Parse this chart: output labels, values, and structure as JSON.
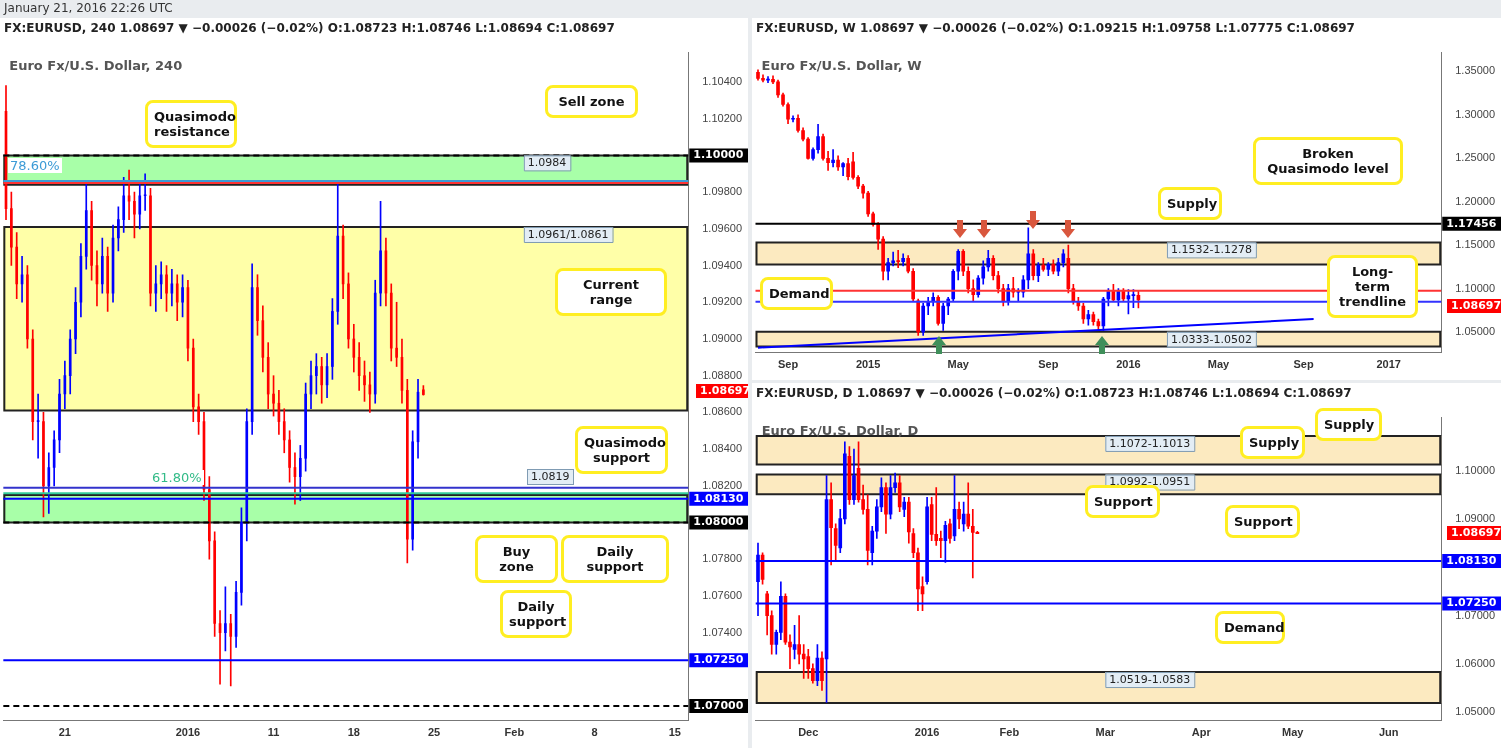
{
  "chart_data": [
    {
      "type": "candlestick",
      "title": "FX:EURUSD, 240  1.08697 ▼ −0.00026 (−0.02%)  O:1.08723 H:1.08746 L:1.08694 C:1.08697",
      "subtitle": "Euro Fx/U.S. Dollar, 240",
      "categories": [
        null,
        null,
        null,
        null,
        null,
        null,
        null,
        null,
        null,
        null,
        null,
        "21",
        null,
        null,
        null,
        null,
        null,
        null,
        null,
        null,
        null,
        null,
        null,
        null,
        null,
        null,
        null,
        null,
        null,
        null,
        null,
        null,
        null,
        null,
        "2016",
        null,
        null,
        null,
        null,
        null,
        null,
        null,
        null,
        null,
        null,
        null,
        null,
        null,
        null,
        null,
        "11",
        null,
        null,
        null,
        null,
        null,
        null,
        null,
        null,
        null,
        null,
        null,
        null,
        null,
        null,
        "18",
        null,
        null,
        null,
        null,
        null,
        null,
        null,
        null,
        null,
        null,
        null,
        null,
        null,
        null,
        "25",
        null,
        null,
        null,
        null,
        null,
        null,
        null,
        null,
        null,
        null,
        null,
        null,
        null,
        null,
        "Feb",
        null,
        null,
        null,
        null,
        null,
        null,
        null,
        null,
        null,
        null,
        null,
        null,
        null,
        null,
        "8",
        null,
        null,
        null,
        null,
        null,
        null,
        null,
        null,
        null,
        null,
        null,
        null,
        null,
        null,
        "15",
        null,
        null
      ],
      "ohlc": [
        [
          1.1024,
          1.1038,
          1.0965,
          1.0971
        ],
        [
          1.0971,
          1.098,
          1.094,
          1.095
        ],
        [
          1.095,
          1.0958,
          1.0922,
          1.093
        ],
        [
          1.093,
          1.0945,
          1.092,
          1.0935
        ],
        [
          1.0935,
          1.094,
          1.0895,
          1.09
        ],
        [
          1.09,
          1.0905,
          1.0845,
          1.0855
        ],
        [
          1.0855,
          1.087,
          1.0835,
          1.0855
        ],
        [
          1.0855,
          1.086,
          1.0803,
          1.082
        ],
        [
          1.082,
          1.0838,
          1.0805,
          1.083
        ],
        [
          1.083,
          1.085,
          1.082,
          1.0845
        ],
        [
          1.0845,
          1.0878,
          1.0838,
          1.087
        ],
        [
          1.087,
          1.0888,
          1.0862,
          1.088
        ],
        [
          1.088,
          1.0905,
          1.087,
          1.09
        ],
        [
          1.09,
          1.0928,
          1.0892,
          1.092
        ],
        [
          1.092,
          1.0952,
          1.0912,
          1.0945
        ],
        [
          1.0945,
          1.0985,
          1.0938,
          1.097
        ],
        [
          1.097,
          1.0975,
          1.0932,
          1.094
        ],
        [
          1.094,
          1.0948,
          1.0918,
          1.093
        ],
        [
          1.093,
          1.0955,
          1.0925,
          1.0945
        ],
        [
          1.0945,
          1.095,
          1.0915,
          1.0925
        ],
        [
          1.0925,
          1.0962,
          1.092,
          1.0955
        ],
        [
          1.0955,
          1.0972,
          1.0948,
          1.0965
        ],
        [
          1.0965,
          1.0988,
          1.0958,
          1.0978
        ],
        [
          1.0978,
          1.0992,
          1.0965,
          1.0975
        ],
        [
          1.0975,
          1.098,
          1.0955,
          1.0968
        ],
        [
          1.0968,
          1.0985,
          1.096,
          1.0978
        ],
        [
          1.0978,
          1.099,
          1.097,
          1.0978
        ],
        [
          1.0978,
          1.0982,
          1.0918,
          1.0925
        ],
        [
          1.0925,
          1.094,
          1.0915,
          1.093
        ],
        [
          1.093,
          1.0942,
          1.0922,
          1.0935
        ],
        [
          1.0935,
          1.094,
          1.0915,
          1.0925
        ],
        [
          1.0925,
          1.0938,
          1.0918,
          1.093
        ],
        [
          1.093,
          1.0935,
          1.091,
          1.092
        ],
        [
          1.092,
          1.0935,
          1.0912,
          1.0928
        ],
        [
          1.0928,
          1.0932,
          1.0888,
          1.0895
        ],
        [
          1.0895,
          1.09,
          1.0855,
          1.0863
        ],
        [
          1.0863,
          1.087,
          1.0848,
          1.0855
        ],
        [
          1.0855,
          1.086,
          1.0812,
          1.0818
        ],
        [
          1.0818,
          1.0825,
          1.078,
          1.079
        ],
        [
          1.079,
          1.0795,
          1.0738,
          1.0745
        ],
        [
          1.0745,
          1.0752,
          1.0712,
          1.074
        ],
        [
          1.074,
          1.0765,
          1.073,
          1.0745
        ],
        [
          1.0745,
          1.075,
          1.0711,
          1.0738
        ],
        [
          1.0738,
          1.0768,
          1.0732,
          1.0762
        ],
        [
          1.0762,
          1.0808,
          1.0755,
          1.08
        ],
        [
          1.08,
          1.0862,
          1.079,
          1.0855
        ],
        [
          1.0855,
          1.0941,
          1.0848,
          1.0928
        ],
        [
          1.0928,
          1.0935,
          1.0902,
          1.091
        ],
        [
          1.091,
          1.0918,
          1.0882,
          1.089
        ],
        [
          1.089,
          1.0898,
          1.0862,
          1.087
        ],
        [
          1.087,
          1.088,
          1.0858,
          1.0865
        ],
        [
          1.0865,
          1.0872,
          1.0848,
          1.0855
        ],
        [
          1.0855,
          1.0862,
          1.0838,
          1.0845
        ],
        [
          1.0845,
          1.085,
          1.0822,
          1.083
        ],
        [
          1.083,
          1.0838,
          1.081,
          1.0825
        ],
        [
          1.0825,
          1.0842,
          1.0812,
          1.0835
        ],
        [
          1.0835,
          1.0876,
          1.0828,
          1.087
        ],
        [
          1.087,
          1.0888,
          1.0862,
          1.088
        ],
        [
          1.088,
          1.0892,
          1.087,
          1.0885
        ],
        [
          1.0885,
          1.089,
          1.0865,
          1.0875
        ],
        [
          1.0875,
          1.0892,
          1.0868,
          1.0885
        ],
        [
          1.0885,
          1.0922,
          1.0878,
          1.0915
        ],
        [
          1.0915,
          1.0985,
          1.0908,
          1.0956
        ],
        [
          1.0956,
          1.0962,
          1.0922,
          1.093
        ],
        [
          1.093,
          1.0936,
          1.0895,
          1.09
        ],
        [
          1.09,
          1.0908,
          1.0882,
          1.089
        ],
        [
          1.089,
          1.0898,
          1.0872,
          1.088
        ],
        [
          1.088,
          1.0888,
          1.0866,
          1.0875
        ],
        [
          1.0875,
          1.0882,
          1.086,
          1.087
        ],
        [
          1.087,
          1.0932,
          1.0865,
          1.0925
        ],
        [
          1.0925,
          1.0975,
          1.0918,
          1.0948
        ],
        [
          1.0948,
          1.0955,
          1.0918,
          1.0925
        ],
        [
          1.0925,
          1.093,
          1.0888,
          1.0895
        ],
        [
          1.0895,
          1.092,
          1.0885,
          1.089
        ],
        [
          1.089,
          1.09,
          1.0865,
          1.0872
        ],
        [
          1.0872,
          1.0878,
          1.0778,
          1.0791
        ],
        [
          1.0791,
          1.085,
          1.0785,
          1.0844
        ],
        [
          1.0844,
          1.0878,
          1.0835,
          1.0871
        ],
        [
          1.08723,
          1.08746,
          1.08694,
          1.08697
        ],
        null,
        null,
        null,
        null,
        null,
        null,
        null,
        null,
        null,
        null,
        null,
        null,
        null,
        null,
        null,
        null,
        null,
        null,
        null,
        null,
        null,
        null,
        null,
        null,
        null,
        null,
        null,
        null,
        null,
        null,
        null,
        null,
        null,
        null,
        null,
        null,
        null,
        null,
        null,
        null,
        null,
        null,
        null,
        null,
        null,
        null,
        null,
        null,
        null
      ],
      "ylim": [
        1.0692,
        1.1056
      ],
      "yticks": [
        {
          "value": 1.074,
          "label": "1.07400"
        },
        {
          "value": 1.076,
          "label": "1.07600"
        },
        {
          "value": 1.078,
          "label": "1.07800"
        },
        {
          "value": 1.082,
          "label": "1.08200"
        },
        {
          "value": 1.084,
          "label": "1.08400"
        },
        {
          "value": 1.086,
          "label": "1.08600"
        },
        {
          "value": 1.088,
          "label": "1.08800"
        },
        {
          "value": 1.09,
          "label": "1.09000"
        },
        {
          "value": 1.092,
          "label": "1.09200"
        },
        {
          "value": 1.094,
          "label": "1.09400"
        },
        {
          "value": 1.096,
          "label": "1.09600"
        },
        {
          "value": 1.098,
          "label": "1.09800"
        },
        {
          "value": 1.102,
          "label": "1.10200"
        },
        {
          "value": 1.104,
          "label": "1.10400"
        }
      ],
      "bands": [
        {
          "axis": "y",
          "from": 1.0984,
          "to": 1.1,
          "label": "1.0984",
          "color": "#99ff99"
        },
        {
          "axis": "y",
          "from": 1.0861,
          "to": 1.0961,
          "label": "1.0961/1.0861",
          "color": "#ffff99"
        },
        {
          "axis": "y",
          "from": 1.08,
          "to": 1.0815,
          "color": "#99ff99"
        }
      ],
      "ref_lines": [
        {
          "axis": "y",
          "value": 1.1,
          "label": "1.10000",
          "color": "#000000",
          "line_style": "dashed"
        },
        {
          "axis": "y",
          "value": 1.0986,
          "color": "#3c9bd6"
        },
        {
          "axis": "y",
          "value": 1.0985,
          "color": "#ff3333"
        },
        {
          "axis": "y",
          "value": 1.0819,
          "color": "#3333cc"
        },
        {
          "axis": "y",
          "value": 1.0816,
          "color": "#33cc99"
        },
        {
          "axis": "y",
          "value": 1.0813,
          "label": "1.08130",
          "color": "#0000ff"
        },
        {
          "axis": "y",
          "value": 1.08,
          "label": "1.08000",
          "color": "#000000",
          "line_style": "dashed"
        },
        {
          "axis": "y",
          "value": 1.0725,
          "label": "1.07250",
          "color": "#0000ff"
        },
        {
          "axis": "y",
          "value": 1.07,
          "label": "1.07000",
          "color": "#000000",
          "line_style": "dashed"
        }
      ],
      "annotations": [
        "January 21, 2016 22:26 UTC",
        "Quasimodo resistance",
        "Sell zone",
        "Current range",
        "Quasimodo support",
        "Buy zone",
        "Daily support",
        "Daily support",
        "78.60%",
        "61.80%",
        "1.0819",
        "1.08697"
      ]
    },
    {
      "type": "candlestick",
      "title": "FX:EURUSD, W  1.08697 ▼ −0.00026 (−0.02%)  O:1.09215 H:1.09758 L:1.07775 C:1.08697",
      "subtitle": "Euro Fx/U.S. Dollar, W",
      "categories": [
        null,
        null,
        null,
        null,
        null,
        null,
        "Sep",
        null,
        null,
        null,
        null,
        null,
        null,
        null,
        null,
        null,
        null,
        null,
        null,
        null,
        null,
        null,
        "2015",
        null,
        null,
        null,
        null,
        null,
        null,
        null,
        null,
        null,
        null,
        null,
        null,
        null,
        null,
        null,
        null,
        null,
        "May",
        null,
        null,
        null,
        null,
        null,
        null,
        null,
        null,
        null,
        null,
        null,
        null,
        null,
        null,
        null,
        null,
        null,
        "Sep",
        null,
        null,
        null,
        null,
        null,
        null,
        null,
        null,
        null,
        null,
        null,
        null,
        null,
        null,
        null,
        "2016",
        null,
        null,
        null,
        null,
        null,
        null,
        null,
        null,
        null,
        null,
        null,
        null,
        null,
        null,
        null,
        null,
        null,
        "May",
        null,
        null,
        null,
        null,
        null,
        null,
        null,
        null,
        null,
        null,
        null,
        null,
        null,
        null,
        null,
        null,
        "Sep",
        null,
        null,
        null,
        null,
        null,
        null,
        null,
        null,
        null,
        null,
        null,
        null,
        null,
        null,
        null,
        null,
        "2017",
        null,
        null,
        null,
        null,
        null,
        null,
        null,
        null,
        null,
        null
      ],
      "ohlc": [
        [
          1.349,
          1.352,
          1.34,
          1.342
        ],
        [
          1.342,
          1.346,
          1.338,
          1.34
        ],
        [
          1.34,
          1.344,
          1.337,
          1.341
        ],
        [
          1.341,
          1.345,
          1.336,
          1.338
        ],
        [
          1.338,
          1.34,
          1.32,
          1.323
        ],
        [
          1.323,
          1.325,
          1.31,
          1.312
        ],
        [
          1.312,
          1.314,
          1.29,
          1.295
        ],
        [
          1.295,
          1.299,
          1.292,
          1.296
        ],
        [
          1.296,
          1.3,
          1.28,
          1.282
        ],
        [
          1.282,
          1.285,
          1.27,
          1.272
        ],
        [
          1.272,
          1.274,
          1.249,
          1.25
        ],
        [
          1.25,
          1.262,
          1.248,
          1.26
        ],
        [
          1.26,
          1.289,
          1.256,
          1.275
        ],
        [
          1.275,
          1.278,
          1.248,
          1.25
        ],
        [
          1.25,
          1.258,
          1.236,
          1.245
        ],
        [
          1.245,
          1.26,
          1.24,
          1.248
        ],
        [
          1.248,
          1.253,
          1.236,
          1.24
        ],
        [
          1.24,
          1.245,
          1.23,
          1.244
        ],
        [
          1.244,
          1.25,
          1.225,
          1.229
        ],
        [
          1.246,
          1.257,
          1.226,
          1.228
        ],
        [
          1.228,
          1.23,
          1.215,
          1.218
        ],
        [
          1.218,
          1.22,
          1.204,
          1.21
        ],
        [
          1.21,
          1.212,
          1.183,
          1.186
        ],
        [
          1.186,
          1.188,
          1.172,
          1.174
        ],
        [
          1.174,
          1.176,
          1.145,
          1.157
        ],
        [
          1.157,
          1.16,
          1.11,
          1.12
        ],
        [
          1.12,
          1.135,
          1.11,
          1.13
        ],
        [
          1.13,
          1.142,
          1.126,
          1.132
        ],
        [
          1.132,
          1.144,
          1.124,
          1.131
        ],
        [
          1.131,
          1.14,
          1.126,
          1.135
        ],
        [
          1.135,
          1.138,
          1.118,
          1.12
        ],
        [
          1.12,
          1.123,
          1.085,
          1.088
        ],
        [
          1.086,
          1.088,
          1.046,
          1.05
        ],
        [
          1.05,
          1.083,
          1.046,
          1.08
        ],
        [
          1.08,
          1.09,
          1.07,
          1.085
        ],
        [
          1.085,
          1.095,
          1.08,
          1.09
        ],
        [
          1.09,
          1.092,
          1.058,
          1.06
        ],
        [
          1.06,
          1.083,
          1.052,
          1.08
        ],
        [
          1.08,
          1.09,
          1.07,
          1.088
        ],
        [
          1.088,
          1.122,
          1.085,
          1.12
        ],
        [
          1.12,
          1.145,
          1.11,
          1.143
        ],
        [
          1.143,
          1.145,
          1.115,
          1.12
        ],
        [
          1.12,
          1.125,
          1.095,
          1.1
        ],
        [
          1.1,
          1.11,
          1.086,
          1.093
        ],
        [
          1.093,
          1.115,
          1.09,
          1.112
        ],
        [
          1.112,
          1.132,
          1.105,
          1.125
        ],
        [
          1.125,
          1.144,
          1.12,
          1.135
        ],
        [
          1.135,
          1.138,
          1.11,
          1.115
        ],
        [
          1.115,
          1.12,
          1.095,
          1.1
        ],
        [
          1.1,
          1.105,
          1.08,
          1.085
        ],
        [
          1.085,
          1.105,
          1.081,
          1.1
        ],
        [
          1.1,
          1.113,
          1.09,
          1.096
        ],
        [
          1.096,
          1.1,
          1.085,
          1.096
        ],
        [
          1.096,
          1.115,
          1.09,
          1.11
        ],
        [
          1.11,
          1.17,
          1.1,
          1.14
        ],
        [
          1.14,
          1.145,
          1.11,
          1.115
        ],
        [
          1.115,
          1.13,
          1.108,
          1.127
        ],
        [
          1.127,
          1.135,
          1.12,
          1.122
        ],
        [
          1.122,
          1.13,
          1.115,
          1.128
        ],
        [
          1.128,
          1.133,
          1.117,
          1.12
        ],
        [
          1.12,
          1.135,
          1.115,
          1.13
        ],
        [
          1.13,
          1.145,
          1.125,
          1.14
        ],
        [
          1.135,
          1.15,
          1.095,
          1.1
        ],
        [
          1.1,
          1.105,
          1.082,
          1.085
        ],
        [
          1.085,
          1.09,
          1.075,
          1.08
        ],
        [
          1.08,
          1.083,
          1.06,
          1.065
        ],
        [
          1.065,
          1.075,
          1.058,
          1.07
        ],
        [
          1.07,
          1.073,
          1.058,
          1.062
        ],
        [
          1.062,
          1.065,
          1.052,
          1.057
        ],
        [
          1.057,
          1.09,
          1.052,
          1.088
        ],
        [
          1.088,
          1.1,
          1.08,
          1.098
        ],
        [
          1.098,
          1.105,
          1.085,
          1.087
        ],
        [
          1.087,
          1.1,
          1.08,
          1.098
        ],
        [
          1.098,
          1.1,
          1.085,
          1.088
        ],
        [
          1.088,
          1.099,
          1.071,
          1.092
        ],
        [
          1.092,
          1.099,
          1.078,
          1.092
        ],
        [
          1.09215,
          1.09758,
          1.07775,
          1.08697
        ],
        null,
        null,
        null,
        null,
        null,
        null,
        null,
        null,
        null,
        null,
        null,
        null,
        null,
        null,
        null,
        null,
        null,
        null,
        null,
        null,
        null,
        null,
        null,
        null,
        null,
        null,
        null,
        null,
        null,
        null,
        null,
        null,
        null,
        null,
        null,
        null,
        null,
        null,
        null,
        null,
        null,
        null,
        null,
        null,
        null,
        null,
        null,
        null,
        null,
        null,
        null,
        null,
        null,
        null,
        null,
        null,
        null,
        null,
        null,
        null
      ],
      "series": [
        {
          "type": "line",
          "color": "#0000ff",
          "values": [
            1.032,
            null,
            null,
            null,
            null,
            null,
            null,
            null,
            null,
            null,
            null,
            null,
            null,
            null,
            null,
            null,
            null,
            null,
            null,
            null,
            null,
            null,
            null,
            null,
            null,
            null,
            null,
            null,
            null,
            null,
            null,
            null,
            null,
            null,
            null,
            null,
            null,
            null,
            null,
            null,
            null,
            null,
            null,
            null,
            null,
            null,
            null,
            null,
            null,
            null,
            null,
            null,
            null,
            null,
            null,
            null,
            null,
            null,
            null,
            null,
            null,
            null,
            null,
            null,
            null,
            null,
            null,
            null,
            null,
            null,
            null,
            null,
            null,
            null,
            null,
            null,
            null,
            null,
            null,
            null,
            null,
            null,
            null,
            null,
            null,
            null,
            null,
            null,
            null,
            null,
            null,
            null,
            null,
            null,
            null,
            null,
            null,
            null,
            null,
            null,
            null,
            null,
            null,
            null,
            null,
            null,
            null,
            null,
            null,
            null,
            null,
            1.065,
            null,
            null,
            null,
            null,
            null,
            null,
            null,
            null,
            null,
            null,
            null,
            null,
            null,
            null,
            null,
            null,
            null,
            null,
            null,
            null,
            null,
            null,
            null,
            null,
            null
          ]
        }
      ],
      "marker": "none",
      "ylim": [
        1.0261,
        1.3717
      ],
      "yticks": [
        {
          "value": 1.05,
          "label": "1.05000"
        },
        {
          "value": 1.1,
          "label": "1.10000"
        },
        {
          "value": 1.15,
          "label": "1.15000"
        },
        {
          "value": 1.2,
          "label": "1.20000"
        },
        {
          "value": 1.25,
          "label": "1.25000"
        },
        {
          "value": 1.3,
          "label": "1.30000"
        },
        {
          "value": 1.35,
          "label": "1.35000"
        }
      ],
      "bands": [
        {
          "axis": "y",
          "from": 1.1278,
          "to": 1.1532,
          "label": "1.1532-1.1278",
          "color": "#fbe6b5"
        },
        {
          "axis": "y",
          "from": 1.0333,
          "to": 1.0502,
          "label": "1.0333-1.0502",
          "color": "#fbe6b5"
        }
      ],
      "ref_lines": [
        {
          "axis": "y",
          "value": 1.17456,
          "label": "1.17456",
          "color": "#000000"
        },
        {
          "axis": "y",
          "value": 1.0975,
          "color": "#ff3333"
        },
        {
          "axis": "y",
          "value": 1.085,
          "color": "#3333ff"
        }
      ],
      "annotations": [
        "Broken Quasimodo level",
        "Supply",
        "Demand",
        "Long-term trendline",
        "1.08697"
      ]
    },
    {
      "type": "candlestick",
      "title": "FX:EURUSD, D  1.08697 ▼ −0.00026 (−0.02%)  O:1.08723 H:1.08746 L:1.08694 C:1.08697",
      "subtitle": "Euro Fx/U.S. Dollar, D",
      "categories": [
        null,
        null,
        null,
        null,
        null,
        null,
        null,
        null,
        null,
        null,
        null,
        "Dec",
        null,
        null,
        null,
        null,
        null,
        null,
        null,
        null,
        null,
        null,
        null,
        null,
        null,
        null,
        null,
        null,
        null,
        null,
        null,
        null,
        null,
        null,
        null,
        null,
        null,
        "2016",
        null,
        null,
        null,
        null,
        null,
        null,
        null,
        null,
        null,
        null,
        null,
        null,
        null,
        null,
        null,
        null,
        null,
        "Feb",
        null,
        null,
        null,
        null,
        null,
        null,
        null,
        null,
        null,
        null,
        null,
        null,
        null,
        null,
        null,
        null,
        null,
        null,
        null,
        null,
        "Mar",
        null,
        null,
        null,
        null,
        null,
        null,
        null,
        null,
        null,
        null,
        null,
        null,
        null,
        null,
        null,
        null,
        null,
        null,
        null,
        null,
        "Apr",
        null,
        null,
        null,
        null,
        null,
        null,
        null,
        null,
        null,
        null,
        null,
        null,
        null,
        null,
        null,
        null,
        null,
        null,
        null,
        "May",
        null,
        null,
        null,
        null,
        null,
        null,
        null,
        null,
        null,
        null,
        null,
        null,
        null,
        null,
        null,
        null,
        null,
        null,
        null,
        null,
        "Jun",
        null,
        null,
        null,
        null,
        null,
        null,
        null,
        null,
        null,
        null,
        null
      ],
      "ohlc": [
        [
          1.077,
          1.085,
          1.07,
          1.0825
        ],
        [
          1.0825,
          1.083,
          1.0765,
          1.0775
        ],
        [
          1.0745,
          1.075,
          1.066,
          1.07
        ],
        [
          1.07,
          1.071,
          1.062,
          1.064
        ],
        [
          1.064,
          1.067,
          1.062,
          1.0665
        ],
        [
          1.0665,
          1.077,
          1.065,
          1.074
        ],
        [
          1.074,
          1.0745,
          1.064,
          1.0645
        ],
        [
          1.0645,
          1.066,
          1.059,
          1.0635
        ],
        [
          1.063,
          1.068,
          1.061,
          1.064
        ],
        [
          1.064,
          1.07,
          1.06,
          1.062
        ],
        [
          1.062,
          1.064,
          1.057,
          1.061
        ],
        [
          1.0615,
          1.063,
          1.057,
          1.059
        ],
        [
          1.059,
          1.06,
          1.056,
          1.0565
        ],
        [
          1.0565,
          1.064,
          1.0555,
          1.0612
        ],
        [
          1.0612,
          1.0625,
          1.0545,
          1.0565
        ],
        [
          1.061,
          1.099,
          1.052,
          1.094
        ],
        [
          1.094,
          1.0975,
          1.0805,
          1.0882
        ],
        [
          1.088,
          1.089,
          1.0815,
          1.0845
        ],
        [
          1.084,
          1.092,
          1.083,
          1.0901
        ],
        [
          1.09,
          1.106,
          1.089,
          1.1035
        ],
        [
          1.103,
          1.105,
          1.093,
          1.094
        ],
        [
          1.094,
          1.1045,
          1.093,
          1.099
        ],
        [
          1.1005,
          1.106,
          1.0935,
          1.094
        ],
        [
          1.094,
          1.097,
          1.091,
          1.092
        ],
        [
          1.092,
          1.095,
          1.0805,
          1.0835
        ],
        [
          1.083,
          1.0885,
          1.0805,
          1.0875
        ],
        [
          1.0875,
          1.094,
          1.086,
          1.0925
        ],
        [
          1.0925,
          1.0985,
          1.0915,
          1.0965
        ],
        [
          1.0965,
          1.0975,
          1.087,
          1.091
        ],
        [
          1.091,
          1.099,
          1.09,
          1.0965
        ],
        [
          1.0965,
          1.0995,
          1.0955,
          1.0975
        ],
        [
          1.0975,
          1.099,
          1.0915,
          1.0925
        ],
        [
          1.092,
          1.0945,
          1.0905,
          1.0935
        ],
        [
          1.0935,
          1.0945,
          1.085,
          1.0873
        ],
        [
          1.087,
          1.088,
          1.082,
          1.083
        ],
        [
          1.083,
          1.084,
          1.071,
          1.0755
        ],
        [
          1.076,
          1.078,
          1.071,
          1.0745
        ],
        [
          1.077,
          1.0945,
          1.0765,
          1.0925
        ],
        [
          1.093,
          1.0945,
          1.0855,
          1.0868
        ],
        [
          1.0868,
          1.0965,
          1.0845,
          1.0855
        ],
        [
          1.086,
          1.0875,
          1.082,
          1.0855
        ],
        [
          1.0855,
          1.0895,
          1.081,
          1.0887
        ],
        [
          1.089,
          1.09,
          1.085,
          1.086
        ],
        [
          1.0865,
          1.099,
          1.0855,
          1.092
        ],
        [
          1.092,
          1.0935,
          1.088,
          1.09
        ],
        [
          1.089,
          1.0935,
          1.0875,
          1.091
        ],
        [
          1.091,
          1.0975,
          1.088,
          1.0885
        ],
        [
          1.0885,
          1.092,
          1.0778,
          1.0872
        ],
        [
          1.08723,
          1.08746,
          1.08694,
          1.08697
        ],
        null,
        null,
        null,
        null,
        null,
        null,
        null,
        null,
        null,
        null,
        null,
        null,
        null,
        null,
        null,
        null,
        null,
        null,
        null,
        null,
        null,
        null,
        null,
        null,
        null,
        null,
        null,
        null,
        null,
        null,
        null,
        null,
        null,
        null,
        null,
        null,
        null,
        null,
        null,
        null,
        null,
        null,
        null,
        null,
        null,
        null,
        null,
        null,
        null,
        null,
        null,
        null,
        null,
        null,
        null,
        null,
        null,
        null,
        null,
        null,
        null,
        null,
        null,
        null,
        null,
        null,
        null,
        null,
        null,
        null,
        null,
        null,
        null,
        null,
        null,
        null,
        null,
        null,
        null,
        null,
        null,
        null,
        null,
        null,
        null,
        null,
        null,
        null,
        null,
        null,
        null,
        null,
        null,
        null,
        null,
        null,
        null,
        null,
        null,
        null,
        null
      ],
      "ylim": [
        1.0482,
        1.111
      ],
      "yticks": [
        {
          "value": 1.05,
          "label": "1.05000"
        },
        {
          "value": 1.06,
          "label": "1.06000"
        },
        {
          "value": 1.07,
          "label": "1.07000"
        },
        {
          "value": 1.09,
          "label": "1.09000"
        },
        {
          "value": 1.1,
          "label": "1.10000"
        }
      ],
      "bands": [
        {
          "axis": "y",
          "from": 1.1013,
          "to": 1.1072,
          "label": "1.1072-1.1013",
          "color": "#fbe6b5"
        },
        {
          "axis": "y",
          "from": 1.0951,
          "to": 1.0992,
          "label": "1.0992-1.0951",
          "color": "#fbe6b5"
        },
        {
          "axis": "y",
          "from": 1.0519,
          "to": 1.0583,
          "label": "1.0519-1.0583",
          "color": "#fbe6b5"
        }
      ],
      "ref_lines": [
        {
          "axis": "y",
          "value": 1.0813,
          "label": "1.08130",
          "color": "#0000ff"
        },
        {
          "axis": "y",
          "value": 1.0725,
          "label": "1.07250",
          "color": "#0000ff"
        }
      ],
      "annotations": [
        "Supply",
        "Supply",
        "Support",
        "Support",
        "Demand",
        "1.08697"
      ]
    }
  ]
}
